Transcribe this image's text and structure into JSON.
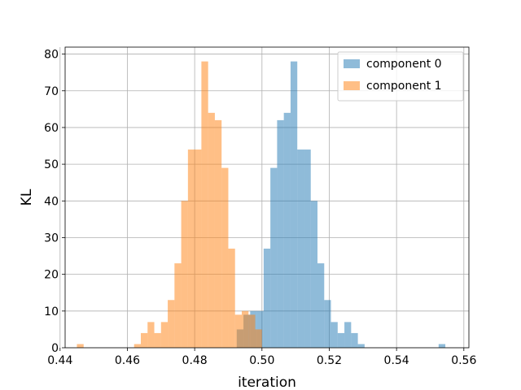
{
  "chart_data": {
    "type": "bar",
    "subtype": "histogram-overlay",
    "title": "",
    "xlabel": "iteration",
    "ylabel": "KL",
    "xlim": [
      0.4415,
      0.5615
    ],
    "ylim": [
      0,
      81.9
    ],
    "xticks": [
      "0.44",
      "0.46",
      "0.48",
      "0.50",
      "0.52",
      "0.54",
      "0.56"
    ],
    "xtick_values": [
      0.44,
      0.46,
      0.48,
      0.5,
      0.52,
      0.54,
      0.56
    ],
    "yticks": [
      "0",
      "10",
      "20",
      "30",
      "40",
      "50",
      "60",
      "70",
      "80"
    ],
    "ytick_values": [
      0,
      10,
      20,
      30,
      40,
      50,
      60,
      70,
      80
    ],
    "grid": true,
    "legend": "top-right",
    "bar_opacity": 0.5,
    "series": [
      {
        "name": "component 0",
        "color": "#1f77b4",
        "bins": [
          [
            0.4925,
            0.4945,
            5
          ],
          [
            0.4945,
            0.4965,
            9
          ],
          [
            0.4965,
            0.4985,
            10
          ],
          [
            0.4985,
            0.5005,
            10
          ],
          [
            0.5005,
            0.5025,
            27
          ],
          [
            0.5025,
            0.5045,
            49
          ],
          [
            0.5045,
            0.5065,
            62
          ],
          [
            0.5065,
            0.5085,
            64
          ],
          [
            0.5085,
            0.5105,
            78
          ],
          [
            0.5105,
            0.5125,
            54
          ],
          [
            0.5125,
            0.5145,
            54
          ],
          [
            0.5145,
            0.5165,
            40
          ],
          [
            0.5165,
            0.5185,
            23
          ],
          [
            0.5185,
            0.5205,
            13
          ],
          [
            0.5205,
            0.5225,
            7
          ],
          [
            0.5225,
            0.5245,
            4
          ],
          [
            0.5245,
            0.5265,
            7
          ],
          [
            0.5265,
            0.5285,
            4
          ],
          [
            0.5285,
            0.5305,
            1
          ],
          [
            0.5525,
            0.5545,
            1
          ]
        ]
      },
      {
        "name": "component 1",
        "color": "#ff7f0e",
        "bins": [
          [
            0.445,
            0.447,
            1
          ],
          [
            0.462,
            0.464,
            1
          ],
          [
            0.464,
            0.466,
            4
          ],
          [
            0.466,
            0.468,
            7
          ],
          [
            0.468,
            0.47,
            4
          ],
          [
            0.47,
            0.472,
            7
          ],
          [
            0.472,
            0.474,
            13
          ],
          [
            0.474,
            0.476,
            23
          ],
          [
            0.476,
            0.478,
            40
          ],
          [
            0.478,
            0.48,
            54
          ],
          [
            0.48,
            0.482,
            54
          ],
          [
            0.482,
            0.484,
            78
          ],
          [
            0.484,
            0.486,
            64
          ],
          [
            0.486,
            0.488,
            62
          ],
          [
            0.488,
            0.49,
            49
          ],
          [
            0.49,
            0.492,
            27
          ],
          [
            0.492,
            0.494,
            9
          ],
          [
            0.494,
            0.496,
            10
          ],
          [
            0.496,
            0.498,
            9
          ],
          [
            0.498,
            0.5,
            5
          ]
        ]
      }
    ]
  }
}
